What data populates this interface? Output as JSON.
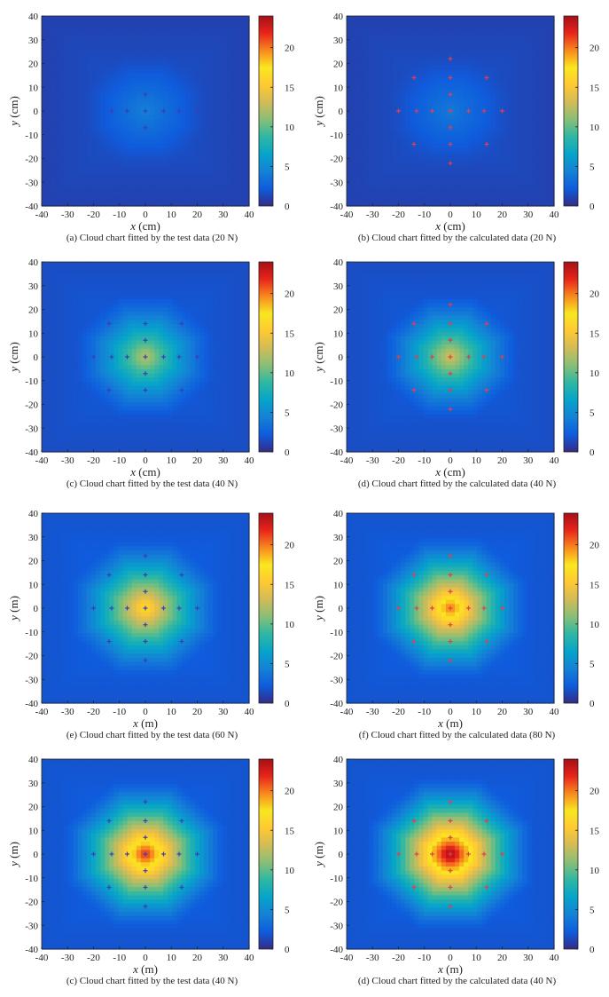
{
  "colormap": [
    "#352a87",
    "#0f5cdd",
    "#1481d6",
    "#06a4ca",
    "#2eb7a4",
    "#87bf77",
    "#d1bb59",
    "#fec832",
    "#f9e721",
    "#f88a1e",
    "#e8251b",
    "#a50f15"
  ],
  "marker_colors": {
    "test": "#3b3fb5",
    "calculated": "#e0404a"
  },
  "chart_data": [
    {
      "type": "heatmap",
      "panel": "a",
      "caption": "(a) Cloud chart fitted by the test data (20 N)",
      "xlabel_var": "x",
      "xlabel_unit": " (cm)",
      "ylabel_var": "y",
      "ylabel_unit": " (cm)",
      "xlim": [
        -40,
        40
      ],
      "ylim": [
        -40,
        40
      ],
      "xticks": [
        -40,
        -30,
        -20,
        -10,
        0,
        10,
        20,
        30,
        40
      ],
      "yticks": [
        -40,
        -30,
        -20,
        -10,
        0,
        10,
        20,
        30,
        40
      ],
      "colorbar": {
        "range": [
          0,
          24
        ],
        "ticks": [
          0,
          5,
          10,
          15,
          20
        ]
      },
      "field": {
        "peak": 3.4,
        "base": 1.0,
        "radius": 24
      },
      "markers": {
        "style": "test",
        "points": [
          [
            -13,
            0
          ],
          [
            -7,
            0
          ],
          [
            0,
            0
          ],
          [
            7,
            0
          ],
          [
            13,
            0
          ],
          [
            0,
            7
          ],
          [
            0,
            -7
          ],
          [
            20,
            0
          ]
        ]
      }
    },
    {
      "type": "heatmap",
      "panel": "b",
      "caption": "(b) Cloud chart fitted by the calculated data (20 N)",
      "xlabel_var": "x",
      "xlabel_unit": " (cm)",
      "ylabel_var": "y",
      "ylabel_unit": " (cm)",
      "xlim": [
        -40,
        40
      ],
      "ylim": [
        -40,
        40
      ],
      "xticks": [
        -40,
        -30,
        -20,
        -10,
        0,
        10,
        20,
        30,
        40
      ],
      "yticks": [
        -40,
        -30,
        -20,
        -10,
        0,
        10,
        20,
        30,
        40
      ],
      "colorbar": {
        "range": [
          0,
          24
        ],
        "ticks": [
          0,
          5,
          10,
          15,
          20
        ]
      },
      "field": {
        "peak": 3.0,
        "base": 1.0,
        "radius": 24
      },
      "markers": {
        "style": "calculated",
        "points": [
          [
            -20,
            0
          ],
          [
            -13,
            0
          ],
          [
            -7,
            0
          ],
          [
            0,
            0
          ],
          [
            7,
            0
          ],
          [
            13,
            0
          ],
          [
            20,
            0
          ],
          [
            0,
            7
          ],
          [
            0,
            14
          ],
          [
            0,
            22
          ],
          [
            0,
            -7
          ],
          [
            0,
            -14
          ],
          [
            0,
            -22
          ],
          [
            -14,
            14
          ],
          [
            14,
            14
          ],
          [
            -14,
            -14
          ],
          [
            14,
            -14
          ]
        ]
      }
    },
    {
      "type": "heatmap",
      "panel": "c",
      "caption": "(c) Cloud chart fitted by the test data (40 N)",
      "xlabel_var": "x",
      "xlabel_unit": " (cm)",
      "ylabel_var": "y",
      "ylabel_unit": " (cm)",
      "xlim": [
        -40,
        40
      ],
      "ylim": [
        -40,
        40
      ],
      "xticks": [
        -40,
        -30,
        -20,
        -10,
        0,
        10,
        20,
        30,
        40
      ],
      "yticks": [
        -40,
        -30,
        -20,
        -10,
        0,
        10,
        20,
        30,
        40
      ],
      "colorbar": {
        "range": [
          0,
          24
        ],
        "ticks": [
          0,
          5,
          10,
          15,
          20
        ]
      },
      "field": {
        "peak": 11.5,
        "base": 1.5,
        "radius": 26
      },
      "markers": {
        "style": "test",
        "points": [
          [
            -20,
            0
          ],
          [
            -13,
            0
          ],
          [
            -7,
            0
          ],
          [
            0,
            0
          ],
          [
            7,
            0
          ],
          [
            13,
            0
          ],
          [
            20,
            0
          ],
          [
            0,
            7
          ],
          [
            0,
            14
          ],
          [
            0,
            -7
          ],
          [
            0,
            -14
          ],
          [
            -14,
            14
          ],
          [
            14,
            14
          ],
          [
            -14,
            -14
          ],
          [
            14,
            -14
          ]
        ]
      }
    },
    {
      "type": "heatmap",
      "panel": "d",
      "caption": "(d) Cloud chart fitted by the calculated data (40 N)",
      "xlabel_var": "x",
      "xlabel_unit": " (cm)",
      "ylabel_var": "y",
      "ylabel_unit": " (cm)",
      "xlim": [
        -40,
        40
      ],
      "ylim": [
        -40,
        40
      ],
      "xticks": [
        -40,
        -30,
        -20,
        -10,
        0,
        10,
        20,
        30,
        40
      ],
      "yticks": [
        -40,
        -30,
        -20,
        -10,
        0,
        10,
        20,
        30,
        40
      ],
      "colorbar": {
        "range": [
          0,
          24
        ],
        "ticks": [
          0,
          5,
          10,
          15,
          20
        ]
      },
      "field": {
        "peak": 12.5,
        "base": 1.5,
        "radius": 26
      },
      "markers": {
        "style": "calculated",
        "points": [
          [
            -20,
            0
          ],
          [
            -13,
            0
          ],
          [
            -7,
            0
          ],
          [
            0,
            0
          ],
          [
            7,
            0
          ],
          [
            13,
            0
          ],
          [
            20,
            0
          ],
          [
            0,
            7
          ],
          [
            0,
            14
          ],
          [
            0,
            22
          ],
          [
            0,
            -7
          ],
          [
            0,
            -14
          ],
          [
            0,
            -22
          ],
          [
            -14,
            14
          ],
          [
            14,
            14
          ],
          [
            -14,
            -14
          ],
          [
            14,
            -14
          ]
        ]
      }
    },
    {
      "type": "heatmap",
      "panel": "e",
      "caption": "(e) Cloud chart fitted by the test data (60 N)",
      "xlabel_var": "x",
      "xlabel_unit": " (m)",
      "ylabel_var": "y",
      "ylabel_unit": " (m)",
      "xlim": [
        -40,
        40
      ],
      "ylim": [
        -40,
        40
      ],
      "xticks": [
        -40,
        -30,
        -20,
        -10,
        0,
        10,
        20,
        30,
        40
      ],
      "yticks": [
        -40,
        -30,
        -20,
        -10,
        0,
        10,
        20,
        30,
        40
      ],
      "colorbar": {
        "range": [
          0,
          24
        ],
        "ticks": [
          0,
          5,
          10,
          15,
          20
        ]
      },
      "field": {
        "peak": 16.0,
        "base": 1.8,
        "radius": 29
      },
      "markers": {
        "style": "test",
        "points": [
          [
            -20,
            0
          ],
          [
            -13,
            0
          ],
          [
            -7,
            0
          ],
          [
            0,
            0
          ],
          [
            7,
            0
          ],
          [
            13,
            0
          ],
          [
            20,
            0
          ],
          [
            0,
            7
          ],
          [
            0,
            14
          ],
          [
            0,
            22
          ],
          [
            0,
            -7
          ],
          [
            0,
            -14
          ],
          [
            0,
            -22
          ],
          [
            -14,
            14
          ],
          [
            14,
            14
          ],
          [
            -14,
            -14
          ],
          [
            14,
            -14
          ]
        ]
      }
    },
    {
      "type": "heatmap",
      "panel": "f",
      "caption": "(f) Cloud chart fitted by the calculated data (80 N)",
      "xlabel_var": "x",
      "xlabel_unit": " (m)",
      "ylabel_var": "y",
      "ylabel_unit": " (m)",
      "xlim": [
        -40,
        40
      ],
      "ylim": [
        -40,
        40
      ],
      "xticks": [
        -40,
        -30,
        -20,
        -10,
        0,
        10,
        20,
        30,
        40
      ],
      "yticks": [
        -40,
        -30,
        -20,
        -10,
        0,
        10,
        20,
        30,
        40
      ],
      "colorbar": {
        "range": [
          0,
          24
        ],
        "ticks": [
          0,
          5,
          10,
          15,
          20
        ]
      },
      "field": {
        "peak": 19.5,
        "base": 1.8,
        "radius": 30
      },
      "markers": {
        "style": "calculated",
        "points": [
          [
            -20,
            0
          ],
          [
            -13,
            0
          ],
          [
            -7,
            0
          ],
          [
            0,
            0
          ],
          [
            7,
            0
          ],
          [
            13,
            0
          ],
          [
            20,
            0
          ],
          [
            0,
            7
          ],
          [
            0,
            14
          ],
          [
            0,
            22
          ],
          [
            0,
            -7
          ],
          [
            0,
            -14
          ],
          [
            0,
            -22
          ],
          [
            -14,
            14
          ],
          [
            14,
            14
          ],
          [
            -14,
            -14
          ],
          [
            14,
            -14
          ]
        ]
      }
    },
    {
      "type": "heatmap",
      "panel": "g",
      "caption": "(c) Cloud chart fitted by the test data (40 N)",
      "xlabel_var": "x",
      "xlabel_unit": " (m)",
      "ylabel_var": "y",
      "ylabel_unit": " (m)",
      "xlim": [
        -40,
        40
      ],
      "ylim": [
        -40,
        40
      ],
      "xticks": [
        -40,
        -30,
        -20,
        -10,
        0,
        10,
        20,
        30,
        40
      ],
      "yticks": [
        -40,
        -30,
        -20,
        -10,
        0,
        10,
        20,
        30,
        40
      ],
      "colorbar": {
        "range": [
          0,
          24
        ],
        "ticks": [
          0,
          5,
          10,
          15,
          20
        ]
      },
      "field": {
        "peak": 21.0,
        "base": 1.8,
        "radius": 31
      },
      "markers": {
        "style": "test",
        "points": [
          [
            -20,
            0
          ],
          [
            -13,
            0
          ],
          [
            -7,
            0
          ],
          [
            0,
            0
          ],
          [
            7,
            0
          ],
          [
            13,
            0
          ],
          [
            20,
            0
          ],
          [
            0,
            7
          ],
          [
            0,
            14
          ],
          [
            0,
            22
          ],
          [
            0,
            -7
          ],
          [
            0,
            -14
          ],
          [
            0,
            -22
          ],
          [
            -14,
            14
          ],
          [
            14,
            14
          ],
          [
            -14,
            -14
          ],
          [
            14,
            -14
          ]
        ]
      }
    },
    {
      "type": "heatmap",
      "panel": "h",
      "caption": "(d) Cloud chart fitted by the calculated data (40 N)",
      "xlabel_var": "x",
      "xlabel_unit": " (m)",
      "ylabel_var": "y",
      "ylabel_unit": " (m)",
      "xlim": [
        -40,
        40
      ],
      "ylim": [
        -40,
        40
      ],
      "xticks": [
        -40,
        -30,
        -20,
        -10,
        0,
        10,
        20,
        30,
        40
      ],
      "yticks": [
        -40,
        -30,
        -20,
        -10,
        0,
        10,
        20,
        30,
        40
      ],
      "colorbar": {
        "range": [
          0,
          24
        ],
        "ticks": [
          0,
          5,
          10,
          15,
          20
        ]
      },
      "field": {
        "peak": 23.5,
        "base": 1.8,
        "radius": 32
      },
      "markers": {
        "style": "calculated",
        "points": [
          [
            -20,
            0
          ],
          [
            -13,
            0
          ],
          [
            -7,
            0
          ],
          [
            0,
            0
          ],
          [
            7,
            0
          ],
          [
            13,
            0
          ],
          [
            20,
            0
          ],
          [
            0,
            7
          ],
          [
            0,
            14
          ],
          [
            0,
            22
          ],
          [
            0,
            -7
          ],
          [
            0,
            -14
          ],
          [
            0,
            -22
          ],
          [
            -14,
            14
          ],
          [
            14,
            14
          ],
          [
            -14,
            -14
          ],
          [
            14,
            -14
          ]
        ]
      }
    }
  ]
}
